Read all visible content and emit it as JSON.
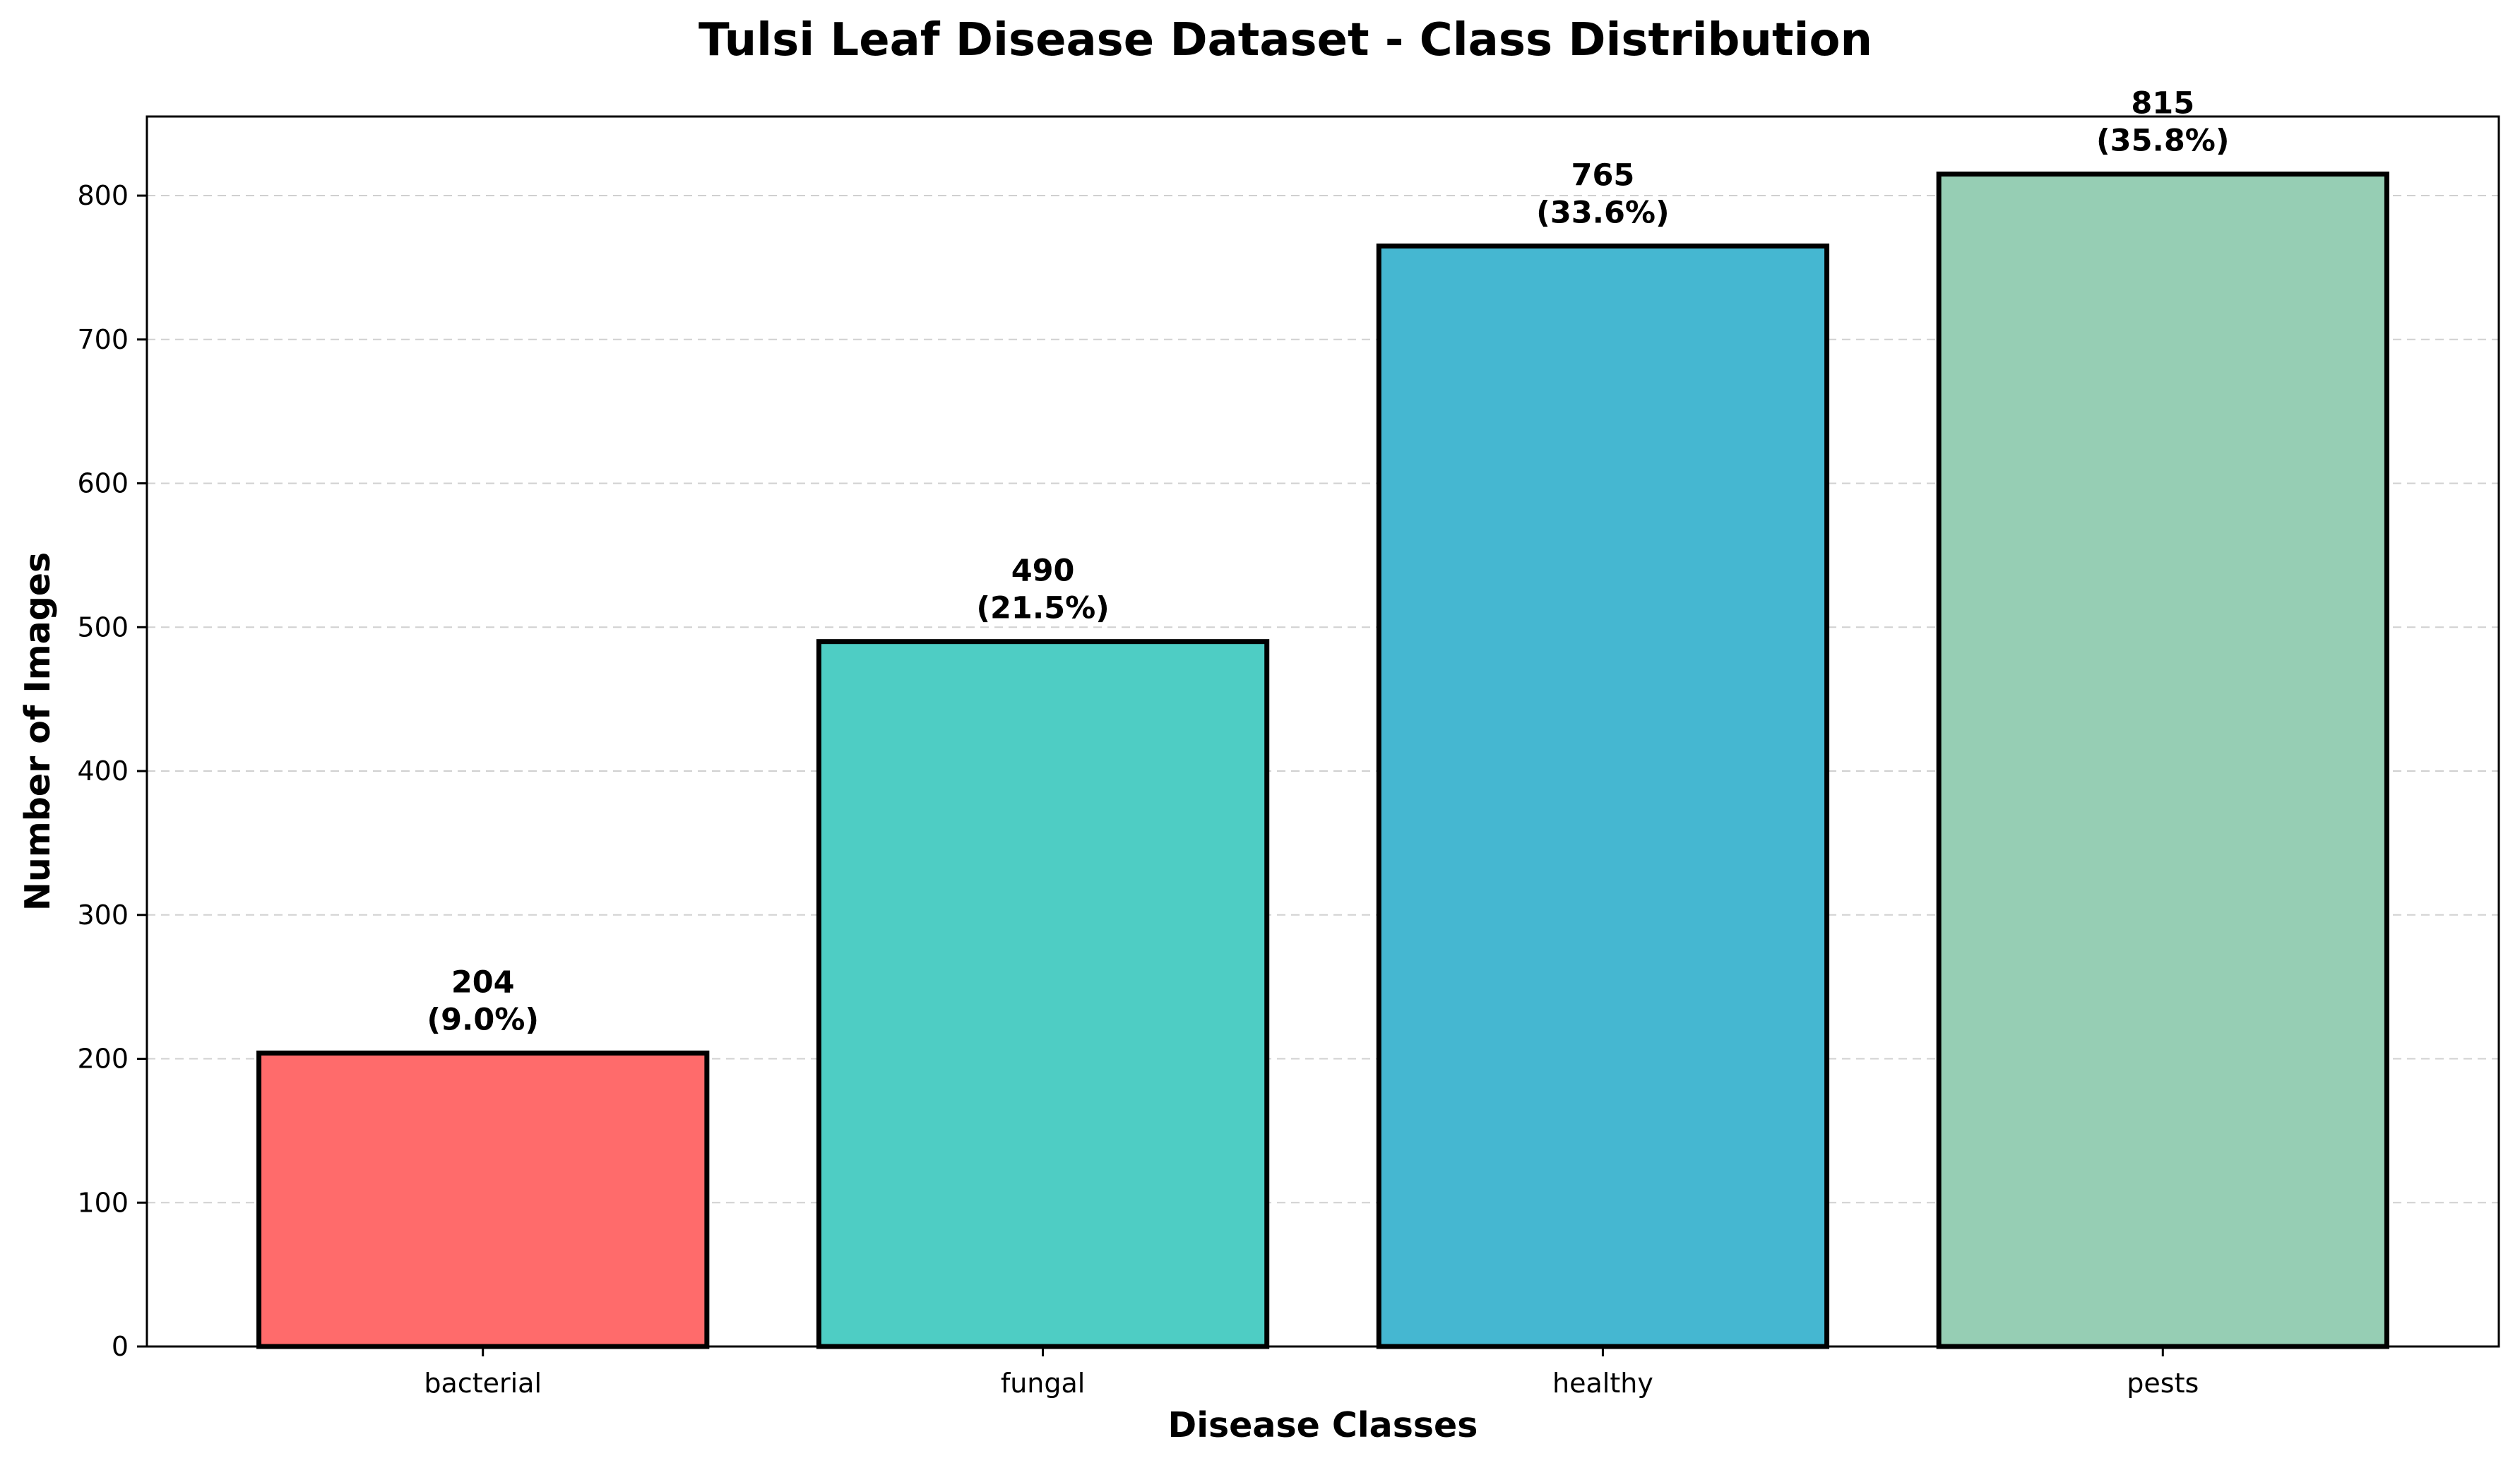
{
  "chart_data": {
    "type": "bar",
    "title": "Tulsi Leaf Disease Dataset - Class Distribution",
    "xlabel": "Disease Classes",
    "ylabel": "Number of Images",
    "categories": [
      "bacterial",
      "fungal",
      "healthy",
      "pests"
    ],
    "values": [
      204,
      490,
      765,
      815
    ],
    "percent_labels": [
      "(9.0%)",
      "(21.5%)",
      "(33.6%)",
      "(35.8%)"
    ],
    "colors": [
      "#FF6B6B",
      "#4ECDC4",
      "#45B7D1",
      "#96CEB4"
    ],
    "edge_color": "#000000",
    "ylim": [
      0,
      855
    ],
    "yticks": [
      0,
      100,
      200,
      300,
      400,
      500,
      600,
      700,
      800
    ],
    "grid": "y-dashed",
    "legend": "none"
  }
}
